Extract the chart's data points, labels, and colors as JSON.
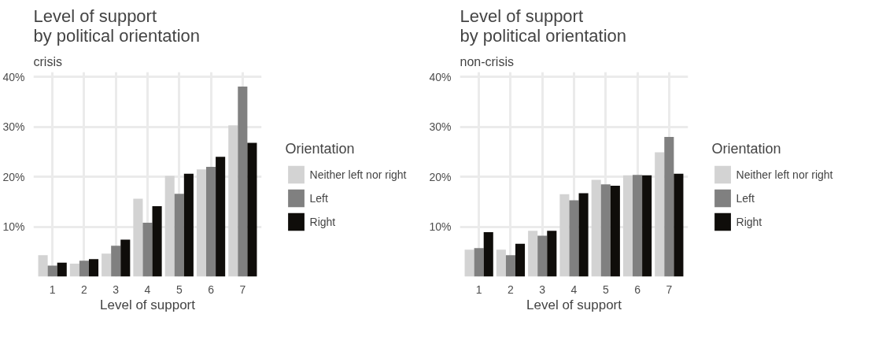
{
  "chart_data": [
    {
      "type": "bar",
      "title": "Level of support\nby political orientation",
      "subtitle": "crisis",
      "xlabel": "Level of support",
      "legend_title": "Orientation",
      "categories": [
        "1",
        "2",
        "3",
        "4",
        "5",
        "6",
        "7"
      ],
      "series": [
        {
          "name": "Neither left nor right",
          "color": "#d3d3d3",
          "values": [
            4.3,
            2.6,
            4.6,
            15.6,
            20.2,
            21.5,
            30.3
          ]
        },
        {
          "name": "Left",
          "color": "#808080",
          "values": [
            2.2,
            3.2,
            6.2,
            10.8,
            16.6,
            22.0,
            38.1
          ]
        },
        {
          "name": "Right",
          "color": "#0f0d0a",
          "values": [
            2.8,
            3.5,
            7.4,
            14.1,
            20.6,
            24.0,
            26.8
          ]
        }
      ],
      "ylim": [
        0,
        41
      ],
      "yticks": [
        {
          "value": 10,
          "label": "10%"
        },
        {
          "value": 20,
          "label": "20%"
        },
        {
          "value": 30,
          "label": "30%"
        },
        {
          "value": 40,
          "label": "40%"
        }
      ],
      "grid": true,
      "legend": "right"
    },
    {
      "type": "bar",
      "title": "Level of support\nby political orientation",
      "subtitle": "non-crisis",
      "xlabel": "Level of support",
      "legend_title": "Orientation",
      "categories": [
        "1",
        "2",
        "3",
        "4",
        "5",
        "6",
        "7"
      ],
      "series": [
        {
          "name": "Neither left nor right",
          "color": "#d3d3d3",
          "values": [
            5.4,
            5.4,
            9.2,
            16.5,
            19.4,
            20.3,
            24.9
          ]
        },
        {
          "name": "Left",
          "color": "#808080",
          "values": [
            5.7,
            4.3,
            8.2,
            15.3,
            18.5,
            20.4,
            28.0
          ]
        },
        {
          "name": "Right",
          "color": "#0f0d0a",
          "values": [
            8.9,
            6.6,
            9.2,
            16.7,
            18.2,
            20.3,
            20.6
          ]
        }
      ],
      "ylim": [
        0,
        41
      ],
      "yticks": [
        {
          "value": 10,
          "label": "10%"
        },
        {
          "value": 20,
          "label": "20%"
        },
        {
          "value": 30,
          "label": "30%"
        },
        {
          "value": 40,
          "label": "40%"
        }
      ],
      "grid": true,
      "legend": "right"
    }
  ]
}
